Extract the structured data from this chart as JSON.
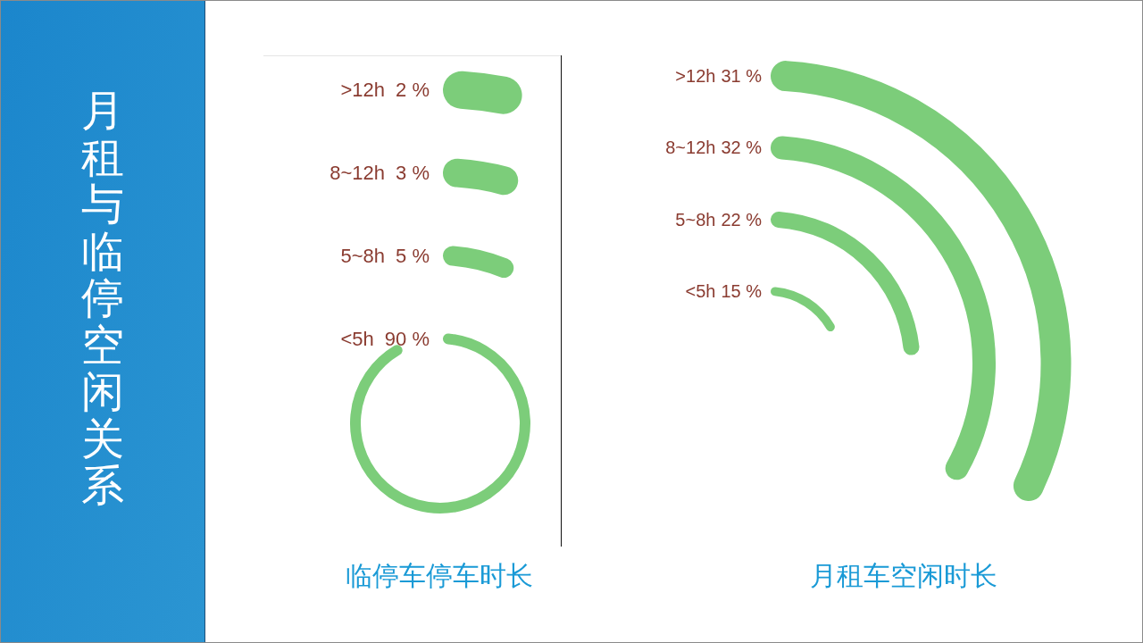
{
  "chart_data": [
    {
      "type": "other",
      "title": "月租与临停空闲关系"
    },
    {
      "type": "other",
      "title": "临停车停车时长",
      "categories": [
        ">12h",
        "8~12h",
        "5~8h",
        "<5h"
      ],
      "values": [
        2,
        3,
        5,
        90
      ],
      "value_labels": [
        "2 %",
        "3 %",
        "5 %",
        "90 %"
      ],
      "color": "#7ccd7a"
    },
    {
      "type": "other",
      "title": "月租车空闲时长",
      "categories": [
        ">12h",
        "8~12h",
        "5~8h",
        "<5h"
      ],
      "values": [
        31,
        32,
        22,
        15
      ],
      "value_labels": [
        "31 %",
        "32 %",
        "22 %",
        "15 %"
      ],
      "color": "#7ccd7a"
    }
  ]
}
